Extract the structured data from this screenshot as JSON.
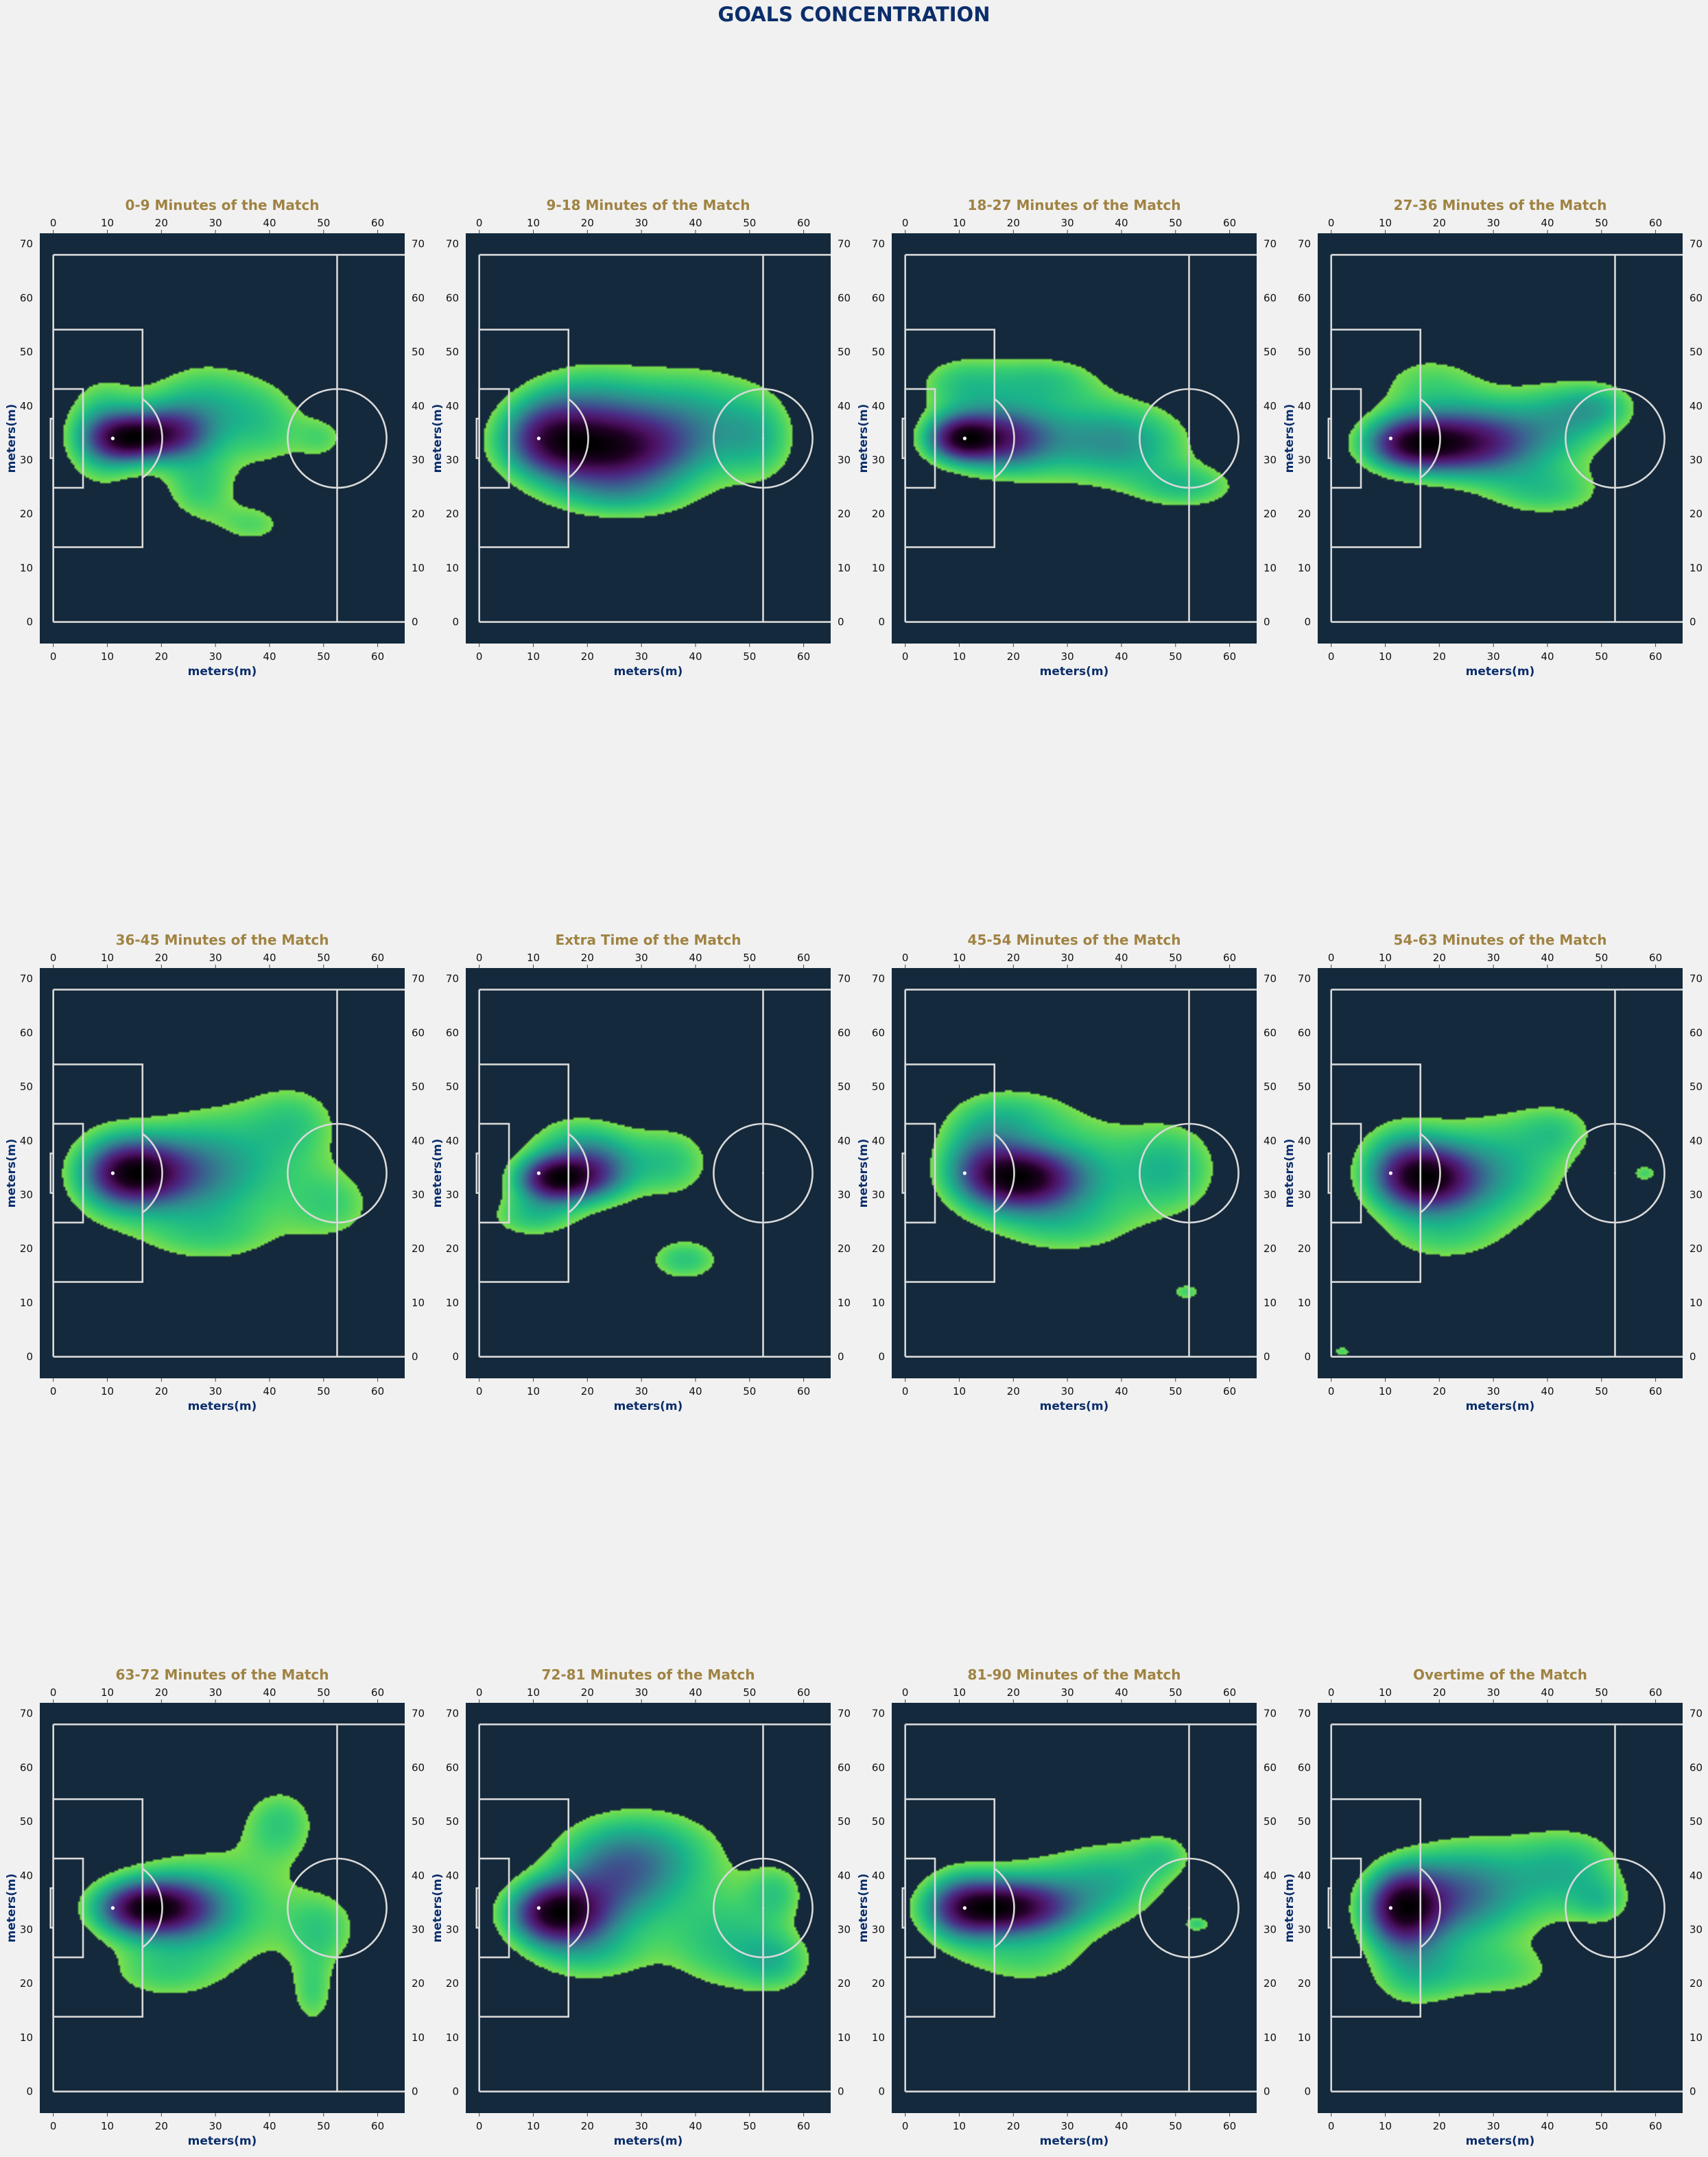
{
  "title": "GOALS CONCENTRATION",
  "colors": {
    "page_bg": "#f1f1f1",
    "pitch_bg": "#14293b",
    "pitch_lines": "#d9d9d9",
    "title_color": "#0b2e6b",
    "panel_title_color": "#a08343",
    "density_colormap": [
      "#7ee04a",
      "#3ad06e",
      "#1ab58a",
      "#2e8e8e",
      "#3b5f8f",
      "#4a2e86",
      "#4b1060",
      "#200024",
      "#000000"
    ]
  },
  "chart_data": {
    "type": "heatmap",
    "kind": "kernel-density heatmaps of goal locations on a football half-pitch",
    "xlabel": "meters(m)",
    "ylabel": "meters(m)",
    "xlim": [
      -2.5,
      65
    ],
    "ylim": [
      -4,
      72
    ],
    "x_ticks": [
      0,
      10,
      20,
      30,
      40,
      50,
      60
    ],
    "y_ticks": [
      0,
      10,
      20,
      30,
      40,
      50,
      60,
      70
    ],
    "pitch": {
      "boundary_y": [
        0,
        68
      ],
      "halfway_line_x": 52.5,
      "penalty_box": {
        "x": [
          0,
          16.5
        ],
        "y": [
          13.85,
          54.15
        ]
      },
      "six_yard_box": {
        "x": [
          0,
          5.5
        ],
        "y": [
          24.85,
          43.15
        ]
      },
      "goal_mouth": {
        "x": [
          -0.5,
          0
        ],
        "y": [
          30.34,
          37.66
        ]
      },
      "penalty_spot": [
        11,
        34
      ],
      "penalty_arc_radius": 9.15,
      "center_circle": {
        "center": [
          52.5,
          34
        ],
        "radius": 9.15
      }
    },
    "panels": [
      {
        "title": "0-9 Minutes of the Match",
        "blobs": [
          [
            14,
            34,
            5,
            3,
            1.3
          ],
          [
            22,
            35,
            5,
            3.5,
            0.9
          ],
          [
            9,
            35,
            5,
            7,
            0.6
          ],
          [
            28,
            40,
            8,
            6,
            0.55
          ],
          [
            27,
            25,
            5,
            5,
            0.45
          ],
          [
            37,
            18,
            5,
            3,
            0.35
          ],
          [
            50,
            34,
            3.5,
            3,
            0.3
          ],
          [
            40,
            36,
            6,
            6,
            0.35
          ]
        ]
      },
      {
        "title": "9-18 Minutes of the Match",
        "blobs": [
          [
            22,
            32,
            10,
            5,
            1.3
          ],
          [
            12,
            35,
            6,
            5,
            0.7
          ],
          [
            32,
            34,
            10,
            8,
            0.45
          ],
          [
            52,
            34,
            5,
            6,
            0.4
          ],
          [
            42,
            38,
            8,
            7,
            0.35
          ],
          [
            20,
            42,
            8,
            5,
            0.35
          ],
          [
            25,
            23,
            9,
            3,
            0.3
          ]
        ]
      },
      {
        "title": "18-27 Minutes of the Match",
        "blobs": [
          [
            10,
            34,
            4.5,
            3,
            1.1
          ],
          [
            18,
            34,
            6,
            4,
            0.8
          ],
          [
            30,
            34,
            12,
            6,
            0.45
          ],
          [
            42,
            33,
            8,
            5,
            0.35
          ],
          [
            52,
            25,
            7,
            3,
            0.4
          ],
          [
            10,
            44,
            6,
            4,
            0.35
          ],
          [
            25,
            45,
            8,
            3.5,
            0.35
          ]
        ]
      },
      {
        "title": "27-36 Minutes of the Match",
        "blobs": [
          [
            14,
            33,
            6,
            3.5,
            1.0
          ],
          [
            24,
            33,
            8,
            4,
            0.9
          ],
          [
            32,
            34,
            10,
            6,
            0.45
          ],
          [
            44,
            38,
            7,
            5,
            0.35
          ],
          [
            50,
            40,
            5,
            3,
            0.3
          ],
          [
            40,
            24,
            8,
            3.5,
            0.35
          ],
          [
            18,
            44,
            8,
            5,
            0.3
          ]
        ]
      },
      {
        "title": "36-45 Minutes of the Match",
        "blobs": [
          [
            15,
            34,
            6,
            4,
            1.3
          ],
          [
            24,
            34,
            8,
            6,
            0.6
          ],
          [
            35,
            36,
            11,
            9,
            0.45
          ],
          [
            52,
            28,
            6,
            5,
            0.35
          ],
          [
            45,
            44,
            6,
            5,
            0.3
          ],
          [
            10,
            34,
            6,
            7,
            0.4
          ],
          [
            28,
            22,
            10,
            4,
            0.3
          ]
        ]
      },
      {
        "title": "Extra Time of the Match",
        "blobs": [
          [
            14,
            33,
            5,
            3,
            1.3
          ],
          [
            22,
            34,
            5,
            4,
            0.65
          ],
          [
            10,
            26,
            6,
            3,
            0.4
          ],
          [
            35,
            36,
            6,
            5,
            0.4
          ],
          [
            38,
            18,
            5,
            3,
            0.4
          ],
          [
            18,
            40,
            7,
            4,
            0.35
          ]
        ]
      },
      {
        "title": "45-54 Minutes of the Match",
        "blobs": [
          [
            22,
            33,
            7,
            4,
            1.4
          ],
          [
            14,
            36,
            6,
            6,
            0.7
          ],
          [
            35,
            34,
            11,
            8,
            0.45
          ],
          [
            50,
            35,
            6,
            6,
            0.4
          ],
          [
            52,
            12,
            2.2,
            1.2,
            0.4
          ],
          [
            20,
            45,
            8,
            4,
            0.35
          ],
          [
            28,
            24,
            9,
            4,
            0.3
          ]
        ]
      },
      {
        "title": "54-63 Minutes of the Match",
        "blobs": [
          [
            18,
            33,
            6,
            4,
            1.2
          ],
          [
            13,
            35,
            6,
            6,
            0.7
          ],
          [
            26,
            33,
            8,
            7,
            0.45
          ],
          [
            35,
            36,
            9,
            8,
            0.35
          ],
          [
            42,
            42,
            5,
            3.5,
            0.3
          ],
          [
            58,
            34,
            1.8,
            1.3,
            0.4
          ],
          [
            2,
            1,
            1.3,
            0.8,
            0.4
          ],
          [
            20,
            22,
            8,
            4,
            0.3
          ]
        ]
      },
      {
        "title": "63-72 Minutes of the Match",
        "blobs": [
          [
            16,
            34,
            6,
            3.5,
            1.3
          ],
          [
            24,
            34,
            6,
            4,
            0.6
          ],
          [
            30,
            34,
            12,
            9,
            0.45
          ],
          [
            42,
            50,
            5,
            5,
            0.4
          ],
          [
            50,
            30,
            5,
            5,
            0.35
          ],
          [
            48,
            18,
            3,
            5,
            0.35
          ],
          [
            20,
            22,
            8,
            4,
            0.3
          ]
        ]
      },
      {
        "title": "72-81 Minutes of the Match",
        "blobs": [
          [
            14,
            33,
            6,
            4,
            1.3
          ],
          [
            24,
            38,
            8,
            7,
            0.6
          ],
          [
            32,
            44,
            10,
            6,
            0.45
          ],
          [
            45,
            28,
            8,
            7,
            0.4
          ],
          [
            55,
            24,
            5,
            4,
            0.35
          ],
          [
            55,
            37,
            4,
            4,
            0.3
          ],
          [
            20,
            25,
            8,
            4,
            0.3
          ]
        ]
      },
      {
        "title": "81-90 Minutes of the Match",
        "blobs": [
          [
            18,
            34,
            8,
            3.5,
            1.3
          ],
          [
            10,
            34,
            5,
            5,
            0.6
          ],
          [
            28,
            36,
            10,
            6,
            0.45
          ],
          [
            40,
            40,
            7,
            5,
            0.35
          ],
          [
            48,
            44,
            4,
            3,
            0.3
          ],
          [
            54,
            31,
            1.8,
            1.1,
            0.4
          ],
          [
            22,
            24,
            9,
            4,
            0.3
          ]
        ]
      },
      {
        "title": "Overtime of the Match",
        "blobs": [
          [
            13,
            34,
            5,
            5,
            1.3
          ],
          [
            22,
            36,
            7,
            6,
            0.55
          ],
          [
            32,
            38,
            10,
            7,
            0.4
          ],
          [
            45,
            42,
            7,
            5,
            0.35
          ],
          [
            50,
            35,
            4,
            3,
            0.3
          ],
          [
            30,
            22,
            10,
            4,
            0.3
          ],
          [
            15,
            22,
            6,
            5,
            0.35
          ]
        ]
      }
    ]
  }
}
